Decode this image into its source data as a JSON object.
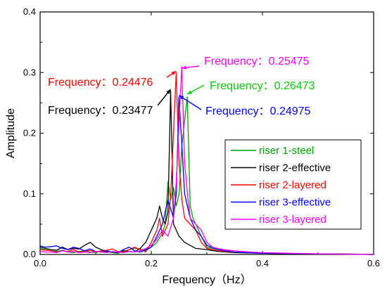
{
  "chart_data": {
    "type": "line",
    "xlabel": "Frequency（Hz）",
    "ylabel": "Amplitude",
    "xlim": [
      0.0,
      0.6
    ],
    "ylim": [
      0.0,
      0.4
    ],
    "x_ticks": [
      "0.0",
      "0.2",
      "0.4",
      "0.6"
    ],
    "y_ticks": [
      "0.0",
      "0.1",
      "0.2",
      "0.3",
      "0.4"
    ],
    "grid": false,
    "legend_position": "center-right",
    "series": [
      {
        "name": "riser 1-steel",
        "color": "#00a000",
        "points": [
          [
            0.0,
            0.01
          ],
          [
            0.01,
            0.008
          ],
          [
            0.02,
            0.006
          ],
          [
            0.03,
            0.005
          ],
          [
            0.04,
            0.007
          ],
          [
            0.05,
            0.004
          ],
          [
            0.06,
            0.003
          ],
          [
            0.07,
            0.005
          ],
          [
            0.08,
            0.006
          ],
          [
            0.09,
            0.004
          ],
          [
            0.1,
            0.003
          ],
          [
            0.11,
            0.005
          ],
          [
            0.12,
            0.004
          ],
          [
            0.13,
            0.003
          ],
          [
            0.14,
            0.002
          ],
          [
            0.15,
            0.005
          ],
          [
            0.16,
            0.008
          ],
          [
            0.17,
            0.01
          ],
          [
            0.18,
            0.009
          ],
          [
            0.19,
            0.006
          ],
          [
            0.2,
            0.012
          ],
          [
            0.21,
            0.02
          ],
          [
            0.22,
            0.035
          ],
          [
            0.225,
            0.05
          ],
          [
            0.23,
            0.12
          ],
          [
            0.235,
            0.09
          ],
          [
            0.24,
            0.11
          ],
          [
            0.245,
            0.08
          ],
          [
            0.25,
            0.1
          ],
          [
            0.255,
            0.18
          ],
          [
            0.2647,
            0.26
          ],
          [
            0.27,
            0.08
          ],
          [
            0.275,
            0.06
          ],
          [
            0.28,
            0.05
          ],
          [
            0.29,
            0.03
          ],
          [
            0.3,
            0.012
          ],
          [
            0.32,
            0.008
          ],
          [
            0.35,
            0.004
          ],
          [
            0.4,
            0.002
          ],
          [
            0.45,
            0.001
          ],
          [
            0.5,
            0.001
          ],
          [
            0.55,
            0.001
          ],
          [
            0.6,
            0.0
          ]
        ]
      },
      {
        "name": "riser 2-effective",
        "color": "#000000",
        "points": [
          [
            0.0,
            0.012
          ],
          [
            0.01,
            0.01
          ],
          [
            0.02,
            0.008
          ],
          [
            0.03,
            0.007
          ],
          [
            0.04,
            0.012
          ],
          [
            0.05,
            0.008
          ],
          [
            0.06,
            0.01
          ],
          [
            0.07,
            0.009
          ],
          [
            0.08,
            0.015
          ],
          [
            0.09,
            0.02
          ],
          [
            0.1,
            0.012
          ],
          [
            0.11,
            0.008
          ],
          [
            0.12,
            0.005
          ],
          [
            0.13,
            0.004
          ],
          [
            0.14,
            0.003
          ],
          [
            0.15,
            0.006
          ],
          [
            0.16,
            0.005
          ],
          [
            0.17,
            0.004
          ],
          [
            0.18,
            0.01
          ],
          [
            0.19,
            0.02
          ],
          [
            0.2,
            0.04
          ],
          [
            0.21,
            0.06
          ],
          [
            0.215,
            0.08
          ],
          [
            0.22,
            0.06
          ],
          [
            0.225,
            0.05
          ],
          [
            0.23,
            0.07
          ],
          [
            0.2348,
            0.27
          ],
          [
            0.24,
            0.05
          ],
          [
            0.245,
            0.04
          ],
          [
            0.25,
            0.03
          ],
          [
            0.26,
            0.02
          ],
          [
            0.27,
            0.015
          ],
          [
            0.28,
            0.01
          ],
          [
            0.3,
            0.008
          ],
          [
            0.32,
            0.005
          ],
          [
            0.35,
            0.003
          ],
          [
            0.4,
            0.002
          ],
          [
            0.45,
            0.001
          ],
          [
            0.5,
            0.001
          ],
          [
            0.6,
            0.0
          ]
        ]
      },
      {
        "name": "riser 2-layered",
        "color": "#ff0000",
        "points": [
          [
            0.0,
            0.008
          ],
          [
            0.01,
            0.007
          ],
          [
            0.02,
            0.006
          ],
          [
            0.03,
            0.004
          ],
          [
            0.04,
            0.006
          ],
          [
            0.05,
            0.005
          ],
          [
            0.06,
            0.008
          ],
          [
            0.07,
            0.004
          ],
          [
            0.08,
            0.005
          ],
          [
            0.09,
            0.007
          ],
          [
            0.1,
            0.004
          ],
          [
            0.11,
            0.006
          ],
          [
            0.12,
            0.007
          ],
          [
            0.13,
            0.009
          ],
          [
            0.14,
            0.005
          ],
          [
            0.15,
            0.004
          ],
          [
            0.16,
            0.008
          ],
          [
            0.17,
            0.012
          ],
          [
            0.18,
            0.008
          ],
          [
            0.19,
            0.004
          ],
          [
            0.2,
            0.02
          ],
          [
            0.21,
            0.04
          ],
          [
            0.215,
            0.06
          ],
          [
            0.22,
            0.03
          ],
          [
            0.23,
            0.05
          ],
          [
            0.235,
            0.1
          ],
          [
            0.2448,
            0.3
          ],
          [
            0.25,
            0.15
          ],
          [
            0.255,
            0.09
          ],
          [
            0.26,
            0.06
          ],
          [
            0.27,
            0.05
          ],
          [
            0.28,
            0.04
          ],
          [
            0.29,
            0.02
          ],
          [
            0.3,
            0.01
          ],
          [
            0.32,
            0.006
          ],
          [
            0.35,
            0.004
          ],
          [
            0.4,
            0.002
          ],
          [
            0.5,
            0.001
          ],
          [
            0.6,
            0.0
          ]
        ]
      },
      {
        "name": "riser 3-effective",
        "color": "#0000ff",
        "points": [
          [
            0.0,
            0.014
          ],
          [
            0.01,
            0.012
          ],
          [
            0.02,
            0.013
          ],
          [
            0.03,
            0.014
          ],
          [
            0.04,
            0.01
          ],
          [
            0.05,
            0.008
          ],
          [
            0.06,
            0.012
          ],
          [
            0.07,
            0.01
          ],
          [
            0.08,
            0.006
          ],
          [
            0.09,
            0.009
          ],
          [
            0.1,
            0.005
          ],
          [
            0.11,
            0.004
          ],
          [
            0.12,
            0.006
          ],
          [
            0.13,
            0.004
          ],
          [
            0.14,
            0.003
          ],
          [
            0.15,
            0.008
          ],
          [
            0.16,
            0.012
          ],
          [
            0.17,
            0.006
          ],
          [
            0.18,
            0.004
          ],
          [
            0.19,
            0.008
          ],
          [
            0.2,
            0.012
          ],
          [
            0.21,
            0.03
          ],
          [
            0.22,
            0.05
          ],
          [
            0.23,
            0.09
          ],
          [
            0.24,
            0.06
          ],
          [
            0.245,
            0.1
          ],
          [
            0.2498,
            0.26
          ],
          [
            0.255,
            0.18
          ],
          [
            0.26,
            0.1
          ],
          [
            0.27,
            0.06
          ],
          [
            0.28,
            0.04
          ],
          [
            0.29,
            0.03
          ],
          [
            0.3,
            0.015
          ],
          [
            0.32,
            0.008
          ],
          [
            0.35,
            0.004
          ],
          [
            0.4,
            0.002
          ],
          [
            0.5,
            0.001
          ],
          [
            0.6,
            0.0
          ]
        ]
      },
      {
        "name": "riser 3-layered",
        "color": "#ff00ff",
        "points": [
          [
            0.0,
            0.005
          ],
          [
            0.01,
            0.004
          ],
          [
            0.02,
            0.004
          ],
          [
            0.03,
            0.003
          ],
          [
            0.04,
            0.006
          ],
          [
            0.05,
            0.004
          ],
          [
            0.06,
            0.005
          ],
          [
            0.07,
            0.003
          ],
          [
            0.08,
            0.004
          ],
          [
            0.09,
            0.003
          ],
          [
            0.1,
            0.005
          ],
          [
            0.11,
            0.004
          ],
          [
            0.12,
            0.003
          ],
          [
            0.13,
            0.005
          ],
          [
            0.14,
            0.004
          ],
          [
            0.15,
            0.003
          ],
          [
            0.16,
            0.005
          ],
          [
            0.17,
            0.004
          ],
          [
            0.18,
            0.006
          ],
          [
            0.19,
            0.01
          ],
          [
            0.2,
            0.015
          ],
          [
            0.21,
            0.025
          ],
          [
            0.22,
            0.04
          ],
          [
            0.23,
            0.03
          ],
          [
            0.24,
            0.06
          ],
          [
            0.245,
            0.12
          ],
          [
            0.2548,
            0.31
          ],
          [
            0.26,
            0.15
          ],
          [
            0.265,
            0.1
          ],
          [
            0.27,
            0.06
          ],
          [
            0.28,
            0.05
          ],
          [
            0.29,
            0.04
          ],
          [
            0.3,
            0.02
          ],
          [
            0.31,
            0.012
          ],
          [
            0.33,
            0.008
          ],
          [
            0.35,
            0.006
          ],
          [
            0.38,
            0.004
          ],
          [
            0.4,
            0.003
          ],
          [
            0.45,
            0.002
          ],
          [
            0.5,
            0.001
          ],
          [
            0.6,
            0.0
          ]
        ]
      }
    ],
    "annotations": [
      {
        "label": "Frequency：",
        "value": "0.25475",
        "color": "#ff00ff",
        "x": 0.25475,
        "y": 0.305
      },
      {
        "label": "Frequency：",
        "value": "0.24476",
        "color": "#ff0000",
        "x": 0.24476,
        "y": 0.3
      },
      {
        "label": "Frequency：",
        "value": "0.26473",
        "color": "#00cc00",
        "x": 0.26473,
        "y": 0.262
      },
      {
        "label": "Frequency：",
        "value": "0.23477",
        "color": "#000000",
        "x": 0.23477,
        "y": 0.27
      },
      {
        "label": "Frequency：",
        "value": "0.24975",
        "color": "#0000ff",
        "x": 0.24975,
        "y": 0.26
      }
    ]
  }
}
